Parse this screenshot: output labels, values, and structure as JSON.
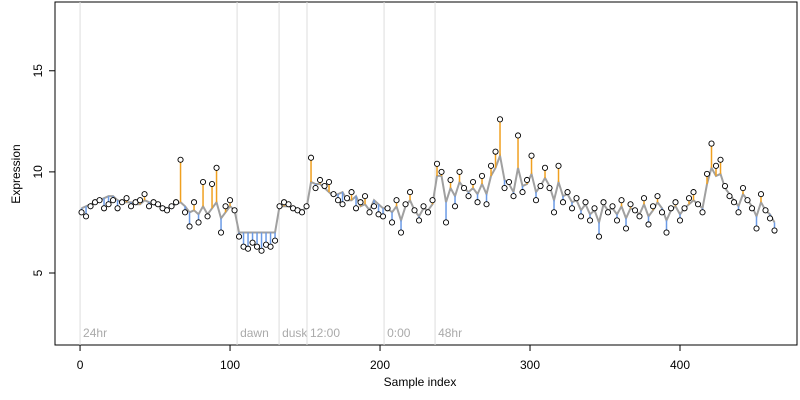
{
  "chart_data": {
    "type": "residual",
    "xlabel": "Sample index",
    "ylabel": "Expression",
    "xlim": [
      -16.7,
      478
    ],
    "ylim": [
      1.44,
      18.4
    ],
    "xticks": [
      0,
      100,
      200,
      300,
      400
    ],
    "yticks": [
      5,
      10,
      15
    ],
    "markers": [
      {
        "x": 0,
        "label": "24hr"
      },
      {
        "x": 104.7,
        "label": "dawn"
      },
      {
        "x": 132.7,
        "label": "dusk"
      },
      {
        "x": 151.3,
        "label": "12:00"
      },
      {
        "x": 202.7,
        "label": "0:00"
      },
      {
        "x": 236.7,
        "label": "48hr"
      }
    ],
    "marker_color": "#dddddd",
    "residual_colors": [
      "#f0a020",
      "#6a9ae6"
    ],
    "x": [
      1,
      4,
      7,
      10,
      13,
      16,
      19,
      22,
      25,
      28,
      31,
      34,
      37,
      40,
      43,
      46,
      49,
      52,
      55,
      58,
      61,
      64,
      67,
      70,
      73,
      76,
      79,
      82,
      85,
      88,
      91,
      94,
      97,
      100,
      103,
      106,
      109,
      112,
      115,
      118,
      121,
      124,
      127,
      130,
      133,
      136,
      139,
      142,
      145,
      148,
      151,
      154,
      157,
      160,
      163,
      166,
      169,
      172,
      175,
      178,
      181,
      184,
      187,
      190,
      193,
      196,
      199,
      202,
      205,
      208,
      211,
      214,
      217,
      220,
      223,
      226,
      229,
      232,
      235,
      238,
      241,
      244,
      247,
      250,
      253,
      256,
      259,
      262,
      265,
      268,
      271,
      274,
      277,
      280,
      283,
      286,
      289,
      292,
      295,
      298,
      301,
      304,
      307,
      310,
      313,
      316,
      319,
      322,
      325,
      328,
      331,
      334,
      337,
      340,
      343,
      346,
      349,
      352,
      355,
      358,
      361,
      364,
      367,
      370,
      373,
      376,
      379,
      382,
      385,
      388,
      391,
      394,
      397,
      400,
      403,
      406,
      409,
      412,
      415,
      418,
      421,
      424,
      427,
      430,
      433,
      436,
      439,
      442,
      445,
      448,
      451,
      454,
      457,
      460,
      463
    ],
    "series": [
      {
        "color": "#000000",
        "values": [
          8.0,
          7.8,
          8.3,
          8.5,
          8.6,
          8.2,
          8.4,
          8.6,
          8.2,
          8.5,
          8.7,
          8.3,
          8.5,
          8.6,
          8.9,
          8.3,
          8.5,
          8.4,
          8.2,
          8.1,
          8.3,
          8.5,
          10.6,
          8.0,
          7.3,
          8.5,
          7.5,
          9.5,
          7.8,
          9.4,
          10.2,
          7.0,
          8.3,
          8.6,
          8.1,
          6.8,
          6.3,
          6.2,
          6.5,
          6.3,
          6.1,
          6.4,
          6.3,
          6.6,
          8.3,
          8.5,
          8.4,
          8.2,
          8.1,
          8.0,
          8.3,
          10.7,
          9.2,
          9.6,
          9.3,
          9.5,
          8.9,
          8.6,
          8.4,
          8.7,
          9.0,
          8.2,
          8.5,
          8.8,
          8.0,
          8.3,
          7.9,
          7.8,
          8.2,
          7.5,
          8.6,
          7.0,
          8.4,
          9.0,
          8.1,
          7.6,
          8.3,
          8.0,
          8.6,
          10.4,
          10.0,
          7.5,
          9.6,
          8.3,
          10.0,
          9.2,
          8.8,
          9.5,
          8.5,
          9.8,
          8.4,
          10.3,
          11.0,
          12.6,
          9.2,
          9.5,
          8.8,
          11.8,
          9.0,
          9.6,
          10.8,
          8.6,
          9.3,
          10.2,
          9.2,
          8.0,
          10.3,
          8.5,
          9.0,
          8.2,
          8.7,
          7.8,
          8.5,
          7.6,
          8.2,
          6.8,
          8.5,
          8.0,
          8.3,
          7.6,
          8.6,
          7.2,
          8.4,
          8.1,
          7.8,
          8.7,
          7.4,
          8.3,
          8.8,
          8.0,
          7.0,
          8.2,
          8.5,
          7.6,
          8.2,
          8.7,
          9.0,
          8.4,
          8.0,
          9.9,
          11.4,
          10.3,
          10.6,
          9.3,
          8.8,
          8.5,
          8.0,
          9.2,
          8.6,
          8.2,
          7.2,
          8.9,
          8.1,
          7.7,
          7.1
        ]
      },
      {
        "color": "#a0a0a0",
        "values": [
          8.2,
          8.3,
          8.4,
          8.5,
          8.6,
          8.7,
          8.8,
          8.8,
          8.6,
          8.5,
          8.5,
          8.5,
          8.4,
          8.4,
          8.6,
          8.5,
          8.4,
          8.3,
          8.3,
          8.2,
          8.3,
          8.4,
          8.5,
          8.3,
          8.0,
          8.1,
          7.9,
          8.3,
          7.9,
          8.2,
          8.5,
          7.7,
          8.0,
          8.3,
          8.1,
          7.0,
          7.0,
          7.0,
          7.0,
          7.0,
          7.0,
          7.0,
          7.0,
          7.0,
          8.3,
          8.3,
          8.3,
          8.2,
          8.2,
          8.1,
          8.2,
          9.5,
          9.4,
          9.4,
          9.2,
          9.0,
          8.8,
          8.9,
          9.0,
          8.6,
          8.6,
          8.8,
          8.3,
          8.4,
          8.1,
          8.6,
          8.4,
          8.2,
          8.2,
          8.0,
          8.3,
          7.6,
          8.3,
          8.6,
          8.1,
          7.8,
          8.2,
          8.1,
          8.4,
          9.8,
          9.8,
          8.5,
          9.2,
          8.8,
          9.5,
          9.2,
          9.0,
          9.2,
          8.9,
          9.4,
          8.9,
          9.8,
          10.2,
          10.8,
          9.6,
          9.4,
          9.0,
          10.2,
          9.3,
          9.4,
          9.9,
          9.0,
          9.3,
          9.7,
          9.3,
          8.6,
          9.5,
          8.8,
          8.9,
          8.5,
          8.6,
          8.1,
          8.4,
          7.9,
          8.1,
          7.5,
          8.4,
          8.1,
          8.2,
          7.9,
          8.3,
          7.7,
          8.2,
          8.1,
          7.9,
          8.4,
          7.8,
          8.1,
          8.5,
          8.2,
          7.6,
          8.1,
          8.3,
          7.9,
          8.2,
          8.4,
          8.6,
          8.4,
          8.2,
          9.4,
          10.2,
          9.8,
          9.9,
          9.2,
          8.9,
          8.6,
          8.3,
          8.9,
          8.6,
          8.3,
          7.8,
          8.5,
          8.1,
          7.9,
          7.5
        ]
      }
    ]
  }
}
